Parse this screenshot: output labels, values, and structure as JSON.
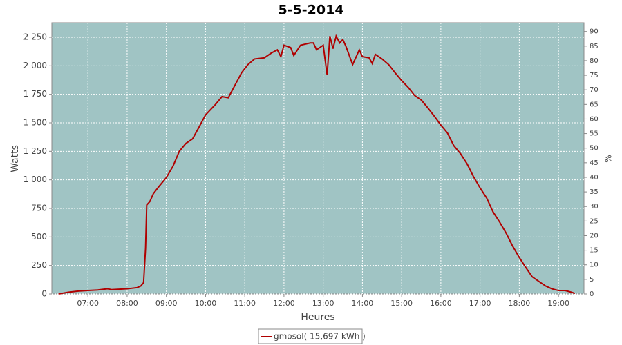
{
  "chart_data": {
    "type": "line",
    "title": "5-5-2014",
    "x_label": "Heures",
    "y_label": "Watts",
    "y2_label": "%",
    "x": [
      6.25,
      6.5,
      6.75,
      7.0,
      7.25,
      7.5,
      7.6,
      8.0,
      8.25,
      8.35,
      8.42,
      8.47,
      8.5,
      8.58,
      8.67,
      8.83,
      9.0,
      9.17,
      9.33,
      9.5,
      9.67,
      9.83,
      10.0,
      10.25,
      10.42,
      10.58,
      10.75,
      10.92,
      11.08,
      11.25,
      11.5,
      11.67,
      11.83,
      11.92,
      12.0,
      12.17,
      12.25,
      12.42,
      12.67,
      12.75,
      12.83,
      13.0,
      13.1,
      13.17,
      13.25,
      13.33,
      13.42,
      13.5,
      13.58,
      13.75,
      13.92,
      14.0,
      14.17,
      14.25,
      14.33,
      14.5,
      14.67,
      14.83,
      15.0,
      15.17,
      15.33,
      15.5,
      15.67,
      15.83,
      16.0,
      16.17,
      16.33,
      16.5,
      16.67,
      16.83,
      17.0,
      17.17,
      17.33,
      17.5,
      17.67,
      17.83,
      18.0,
      18.17,
      18.33,
      18.5,
      18.67,
      18.83,
      19.0,
      19.17,
      19.33,
      19.42
    ],
    "series": [
      {
        "name": "gmosol( 15,697 kWh )",
        "color": "#b00000",
        "values": [
          0,
          15,
          25,
          30,
          35,
          45,
          38,
          45,
          55,
          70,
          100,
          400,
          780,
          810,
          880,
          950,
          1020,
          1120,
          1250,
          1320,
          1360,
          1460,
          1570,
          1660,
          1730,
          1720,
          1830,
          1940,
          2010,
          2060,
          2070,
          2110,
          2140,
          2080,
          2180,
          2160,
          2090,
          2180,
          2200,
          2200,
          2140,
          2180,
          1920,
          2260,
          2150,
          2260,
          2200,
          2230,
          2170,
          2010,
          2140,
          2080,
          2070,
          2020,
          2100,
          2060,
          2010,
          1940,
          1870,
          1810,
          1740,
          1700,
          1630,
          1560,
          1480,
          1410,
          1300,
          1230,
          1140,
          1030,
          930,
          840,
          720,
          630,
          530,
          420,
          320,
          230,
          150,
          110,
          70,
          45,
          30,
          30,
          15,
          5
        ]
      }
    ],
    "xlim": [
      6.08,
      19.65
    ],
    "xticks": [
      {
        "value": 7,
        "label": "07:00"
      },
      {
        "value": 8,
        "label": "08:00"
      },
      {
        "value": 9,
        "label": "09:00"
      },
      {
        "value": 10,
        "label": "10:00"
      },
      {
        "value": 11,
        "label": "11:00"
      },
      {
        "value": 12,
        "label": "12:00"
      },
      {
        "value": 13,
        "label": "13:00"
      },
      {
        "value": 14,
        "label": "14:00"
      },
      {
        "value": 15,
        "label": "15:00"
      },
      {
        "value": 16,
        "label": "16:00"
      },
      {
        "value": 17,
        "label": "17:00"
      },
      {
        "value": 18,
        "label": "18:00"
      },
      {
        "value": 19,
        "label": "19:00"
      }
    ],
    "ylim": [
      0,
      2377
    ],
    "yticks": [
      0,
      250,
      500,
      750,
      {
        "value": 1000,
        "label": "1 000"
      },
      {
        "value": 1250,
        "label": "1 250"
      },
      {
        "value": 1500,
        "label": "1 500"
      },
      {
        "value": 1750,
        "label": "1 750"
      },
      {
        "value": 2000,
        "label": "2 000"
      },
      {
        "value": 2250,
        "label": "2 250"
      }
    ],
    "y2lim": [
      0,
      93
    ],
    "y2ticks": [
      0,
      5,
      10,
      15,
      20,
      25,
      30,
      35,
      40,
      45,
      50,
      55,
      60,
      65,
      70,
      75,
      80,
      85,
      90
    ],
    "grid": true,
    "plot_background": "#a0c4c4",
    "legend": "bottom"
  }
}
